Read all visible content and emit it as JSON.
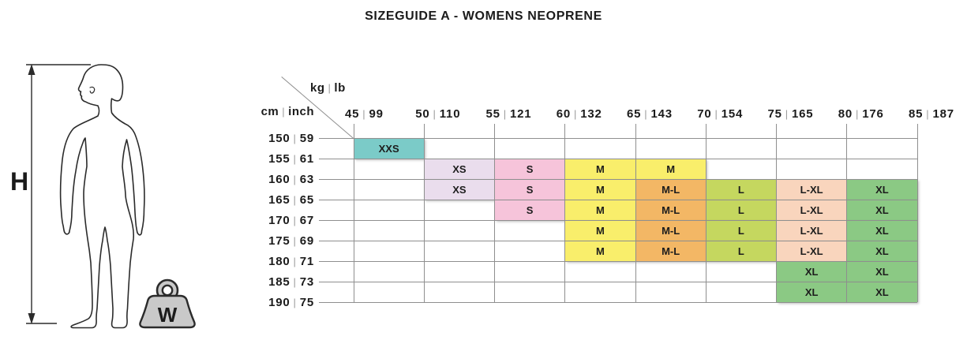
{
  "title": "SIZEGUIDE A - WOMENS NEOPRENE",
  "figure": {
    "height_label": "H",
    "weight_label": "W"
  },
  "corner": {
    "weight_unit_kg": "kg",
    "weight_unit_lb": "lb",
    "height_unit_cm": "cm",
    "height_unit_inch": "inch",
    "separator": "|"
  },
  "chart_data": {
    "type": "table",
    "title": "SIZEGUIDE A - WOMENS NEOPRENE",
    "x_axis": {
      "units": [
        "kg",
        "lb"
      ],
      "weights_kg": [
        45,
        50,
        55,
        60,
        65,
        70,
        75,
        80,
        85
      ],
      "weights_lb": [
        99,
        110,
        121,
        132,
        143,
        154,
        165,
        176,
        187
      ]
    },
    "y_axis": {
      "units": [
        "cm",
        "inch"
      ],
      "heights_cm": [
        150,
        155,
        160,
        165,
        170,
        175,
        180,
        185,
        190
      ],
      "heights_inch": [
        59,
        61,
        63,
        65,
        67,
        69,
        71,
        73,
        75
      ]
    },
    "grid": [
      [
        "XXS",
        null,
        null,
        null,
        null,
        null,
        null,
        null
      ],
      [
        null,
        "XS",
        "S",
        "M",
        "M",
        null,
        null,
        null
      ],
      [
        null,
        "XS",
        "S",
        "M",
        "M-L",
        "L",
        "L-XL",
        "XL"
      ],
      [
        null,
        null,
        "S",
        "M",
        "M-L",
        "L",
        "L-XL",
        "XL"
      ],
      [
        null,
        null,
        null,
        "M",
        "M-L",
        "L",
        "L-XL",
        "XL"
      ],
      [
        null,
        null,
        null,
        "M",
        "M-L",
        "L",
        "L-XL",
        "XL"
      ],
      [
        null,
        null,
        null,
        null,
        null,
        null,
        "XL",
        "XL"
      ],
      [
        null,
        null,
        null,
        null,
        null,
        null,
        "XL",
        "XL"
      ]
    ],
    "size_colors": {
      "XXS": "#7bcbc8",
      "XS": "#eadded",
      "S": "#f6c4da",
      "M": "#f9ee6b",
      "M-L": "#f3b765",
      "L": "#c5d75f",
      "L-XL": "#f9d5bd",
      "XL": "#8bc984"
    },
    "grid_line_color": "#8f8f8f"
  }
}
